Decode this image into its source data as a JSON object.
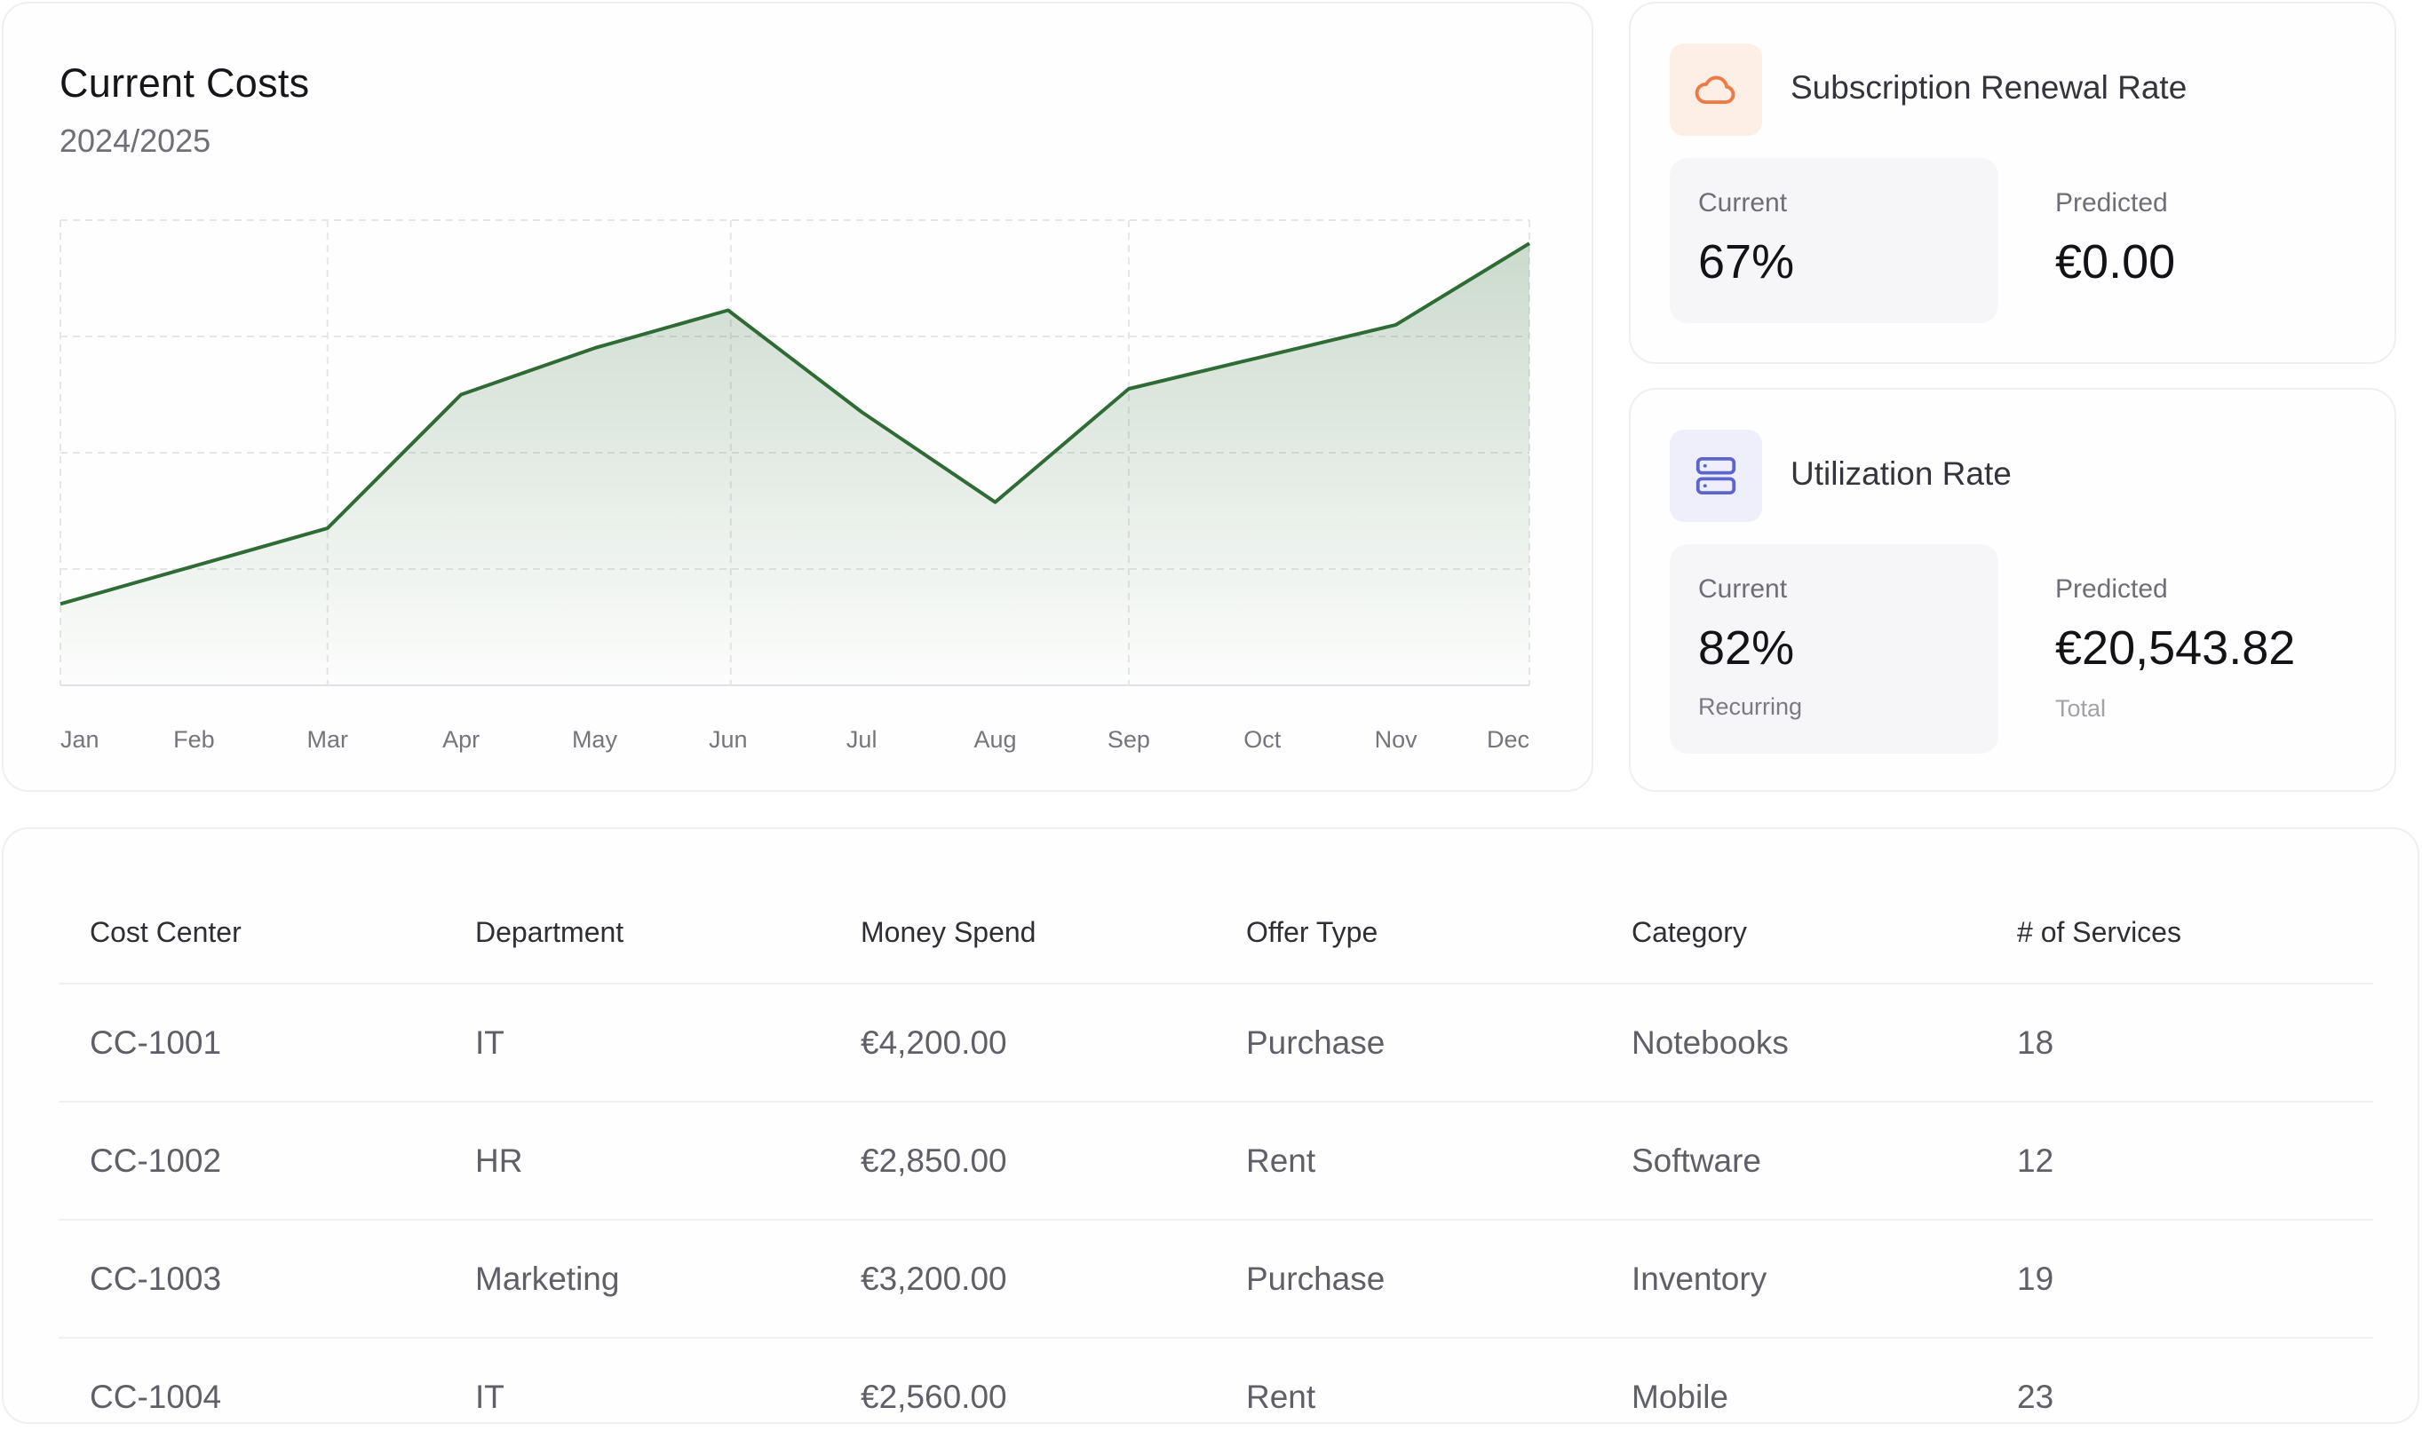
{
  "costs": {
    "title": "Current Costs",
    "subtitle": "2024/2025",
    "accent": "#2e6b35"
  },
  "chart_data": {
    "type": "area",
    "title": "Current Costs",
    "subtitle": "2024/2025",
    "categories": [
      "Jan",
      "Feb",
      "Mar",
      "Apr",
      "May",
      "Jun",
      "Jul",
      "Aug",
      "Sep",
      "Oct",
      "Nov",
      "Dec"
    ],
    "values": [
      14,
      20.5,
      27,
      50,
      58,
      64.5,
      47,
      31.5,
      51,
      56.5,
      62,
      76
    ],
    "ylim": [
      0,
      80
    ],
    "grid": true,
    "line_color": "#2e6b35"
  },
  "renewal": {
    "title": "Subscription Renewal Rate",
    "icon": "cloud-icon",
    "current_label": "Current",
    "current_value": "67%",
    "predicted_label": "Predicted",
    "predicted_value": "€0.00",
    "icon_color": "#ef7a45",
    "icon_bg": "#fdeee6"
  },
  "utilization": {
    "title": "Utilization Rate",
    "icon": "server-icon",
    "current_label": "Current",
    "current_value": "82%",
    "current_note": "Recurring",
    "predicted_label": "Predicted",
    "predicted_value": "€20,543.82",
    "predicted_note": "Total",
    "icon_color": "#5b64cf",
    "icon_bg": "#eeeffb"
  },
  "table": {
    "headers": [
      "Cost Center",
      "Department",
      "Money Spend",
      "Offer Type",
      "Category",
      "# of Services"
    ],
    "rows": [
      [
        "CC-1001",
        "IT",
        "€4,200.00",
        "Purchase",
        "Notebooks",
        "18"
      ],
      [
        "CC-1002",
        "HR",
        "€2,850.00",
        "Rent",
        "Software",
        "12"
      ],
      [
        "CC-1003",
        "Marketing",
        "€3,200.00",
        "Purchase",
        "Inventory",
        "19"
      ],
      [
        "CC-1004",
        "IT",
        "€2,560.00",
        "Rent",
        "Mobile",
        "23"
      ]
    ]
  }
}
